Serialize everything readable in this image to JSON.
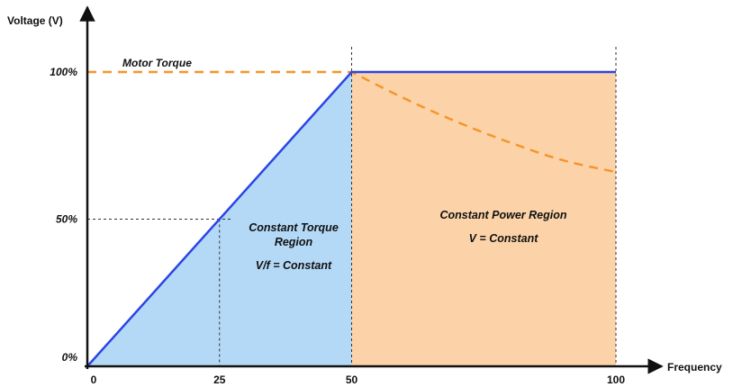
{
  "chart_data": {
    "type": "line",
    "title": "",
    "ylabel": "Voltage (V)",
    "xlabel": "Frequency",
    "x_ticks": [
      "0",
      "25",
      "50",
      "100"
    ],
    "y_ticks": [
      "0%",
      "50%",
      "100%"
    ],
    "xlim": [
      0,
      100
    ],
    "ylim": [
      0,
      100
    ],
    "series": [
      {
        "name": "",
        "kind": "voltage",
        "color": "#2b45e6",
        "points": [
          [
            0,
            0
          ],
          [
            50,
            100
          ],
          [
            100,
            100
          ]
        ]
      },
      {
        "name": "Motor Torque",
        "kind": "torque",
        "color": "#f5962a",
        "points": [
          [
            0,
            100
          ],
          [
            50,
            100
          ],
          [
            60,
            91
          ],
          [
            70,
            83
          ],
          [
            80,
            76
          ],
          [
            90,
            70
          ],
          [
            100,
            66
          ]
        ]
      }
    ],
    "regions": [
      {
        "name": "constant-torque",
        "x_range": [
          0,
          50
        ],
        "color": "#b4d9f7",
        "lines": [
          "Constant Torque",
          "Region",
          "V/f = Constant"
        ]
      },
      {
        "name": "constant-power",
        "x_range": [
          50,
          100
        ],
        "color": "#fcd3a8",
        "lines": [
          "Constant Power Region",
          "V = Constant"
        ]
      }
    ],
    "reference_lines": [
      {
        "x": 25,
        "y": 50
      },
      {
        "x": 50,
        "y": 100
      },
      {
        "x": 100,
        "y": 100
      }
    ],
    "grid": false,
    "legend": "none"
  }
}
